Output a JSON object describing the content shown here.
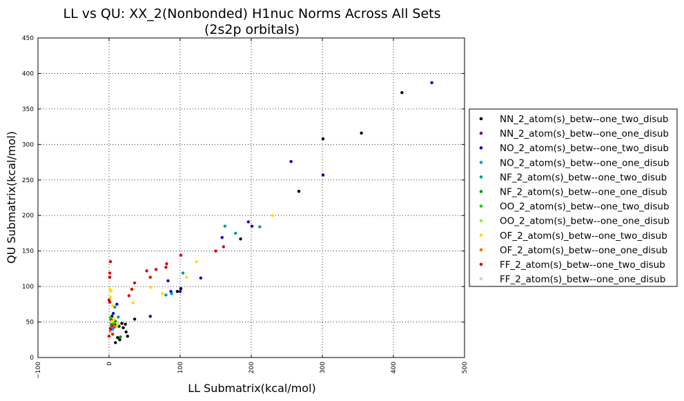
{
  "chart_data": {
    "type": "scatter",
    "title": "LL vs QU: XX_2(Nonbonded) H1nuc Norms Across All Sets",
    "subtitle": "(2s2p orbitals)",
    "xlabel": "LL Submatrix(kcal/mol)",
    "ylabel": "QU Submatrix(kcal/mol)",
    "xlim": [
      -100,
      500
    ],
    "ylim": [
      0,
      450
    ],
    "xticks": [
      "−100",
      "0",
      "100",
      "200",
      "300",
      "400",
      "500"
    ],
    "yticks": [
      "0",
      "50",
      "100",
      "150",
      "200",
      "250",
      "300",
      "350",
      "400",
      "450"
    ],
    "grid": true,
    "legend_position": "right",
    "series": [
      {
        "name": "NN_2_atom(s)_betw--one_two_disub",
        "color": "#000000",
        "points": [
          [
            412,
            373
          ],
          [
            355,
            316
          ],
          [
            301,
            308
          ],
          [
            267,
            234
          ],
          [
            185,
            167
          ],
          [
            101,
            97
          ],
          [
            96,
            93
          ],
          [
            36,
            54
          ],
          [
            23,
            47
          ],
          [
            20,
            42
          ],
          [
            24,
            36
          ],
          [
            26,
            30
          ],
          [
            15,
            25
          ],
          [
            12,
            28
          ],
          [
            9,
            21
          ],
          [
            18,
            48
          ],
          [
            7,
            43
          ],
          [
            4,
            58
          ],
          [
            14,
            44
          ]
        ]
      },
      {
        "name": "NN_2_atom(s)_betw--one_one_disub",
        "color": "#800080",
        "points": [
          [
            3,
            53
          ],
          [
            6,
            46
          ]
        ]
      },
      {
        "name": "NO_2_atom(s)_betw--one_two_disub",
        "color": "#0000cc",
        "points": [
          [
            454,
            387
          ],
          [
            256,
            276
          ],
          [
            301,
            257
          ],
          [
            196,
            191
          ],
          [
            201,
            185
          ],
          [
            159,
            169
          ],
          [
            129,
            112
          ],
          [
            100,
            93
          ],
          [
            83,
            108
          ],
          [
            87,
            93
          ],
          [
            58,
            58
          ],
          [
            11,
            75
          ],
          [
            6,
            62
          ],
          [
            9,
            46
          ]
        ]
      },
      {
        "name": "NO_2_atom(s)_betw--one_one_disub",
        "color": "#0099dd",
        "points": [
          [
            5,
            40
          ],
          [
            2,
            42
          ]
        ]
      },
      {
        "name": "NF_2_atom(s)_betw--one_two_disub",
        "color": "#009999",
        "points": [
          [
            163,
            185
          ],
          [
            178,
            175
          ],
          [
            212,
            184
          ],
          [
            104,
            119
          ],
          [
            80,
            88
          ],
          [
            88,
            90
          ],
          [
            8,
            71
          ],
          [
            13,
            57
          ],
          [
            3,
            48
          ]
        ]
      },
      {
        "name": "NF_2_atom(s)_betw--one_one_disub",
        "color": "#009900",
        "points": [
          [
            9,
            51
          ],
          [
            16,
            29
          ]
        ]
      },
      {
        "name": "OO_2_atom(s)_betw--one_two_disub",
        "color": "#00dd00",
        "points": [
          [
            6,
            48
          ],
          [
            2,
            56
          ]
        ]
      },
      {
        "name": "OO_2_atom(s)_betw--one_one_disub",
        "color": "#99ee00",
        "points": [
          [
            3,
            50
          ],
          [
            11,
            44
          ]
        ]
      },
      {
        "name": "OF_2_atom(s)_betw--one_two_disub",
        "color": "#ffdd00",
        "points": [
          [
            230,
            200
          ],
          [
            123,
            135
          ],
          [
            109,
            113
          ],
          [
            75,
            90
          ],
          [
            59,
            99
          ],
          [
            34,
            77
          ],
          [
            1,
            96
          ],
          [
            3,
            94
          ],
          [
            2,
            85
          ],
          [
            5,
            73
          ],
          [
            4,
            51
          ],
          [
            7,
            54
          ],
          [
            12,
            47
          ]
        ]
      },
      {
        "name": "OF_2_atom(s)_betw--one_one_disub",
        "color": "#ff6600",
        "points": [
          [
            2,
            37
          ],
          [
            7,
            44
          ]
        ]
      },
      {
        "name": "FF_2_atom(s)_betw--one_two_disub",
        "color": "#dd0000",
        "points": [
          [
            150,
            150
          ],
          [
            161,
            156
          ],
          [
            101,
            144
          ],
          [
            81,
            132
          ],
          [
            80,
            127
          ],
          [
            66,
            124
          ],
          [
            53,
            122
          ],
          [
            58,
            113
          ],
          [
            36,
            105
          ],
          [
            32,
            96
          ],
          [
            28,
            87
          ],
          [
            2,
            135
          ],
          [
            1,
            119
          ],
          [
            1,
            113
          ],
          [
            0,
            81
          ],
          [
            1,
            78
          ],
          [
            0,
            30
          ],
          [
            5,
            33
          ],
          [
            2,
            40
          ],
          [
            4,
            45
          ]
        ]
      },
      {
        "name": "FF_2_atom(s)_betw--one_one_disub",
        "color": "#cccccc",
        "points": [
          [
            4,
            36
          ]
        ]
      }
    ]
  }
}
